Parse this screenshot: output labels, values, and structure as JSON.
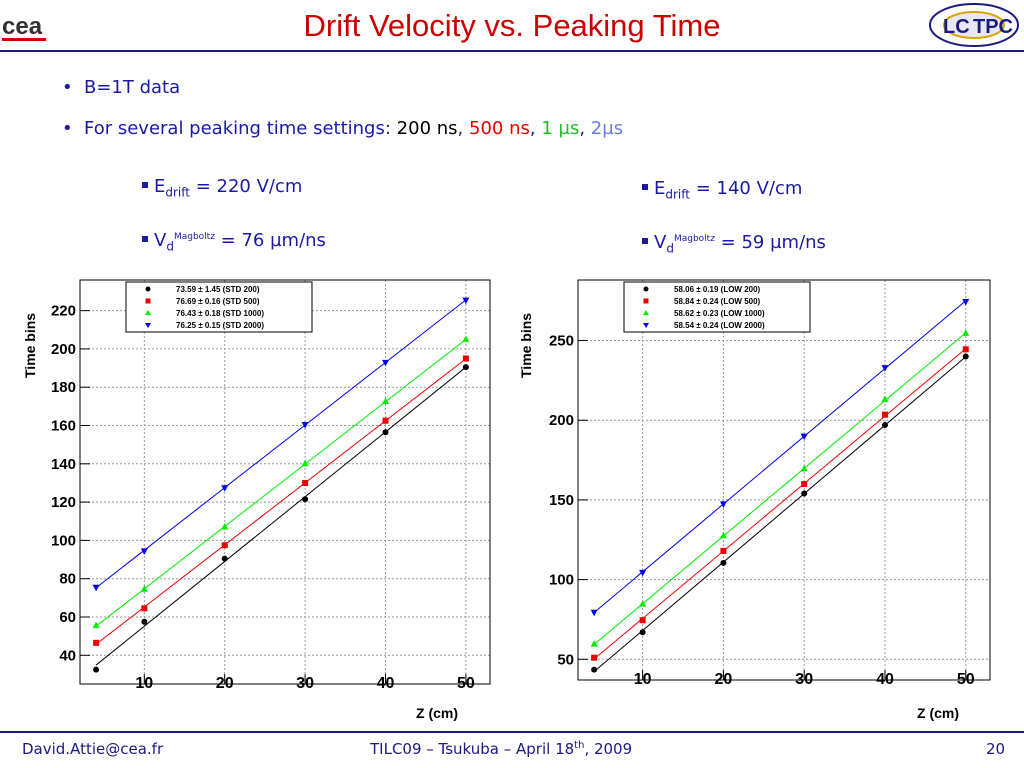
{
  "title": "Drift Velocity vs. Peaking Time",
  "bullets": {
    "b1": "B=1T data",
    "b2_prefix": "For several peaking time settings:",
    "t1": "200 ns",
    "t2": "500 ns",
    "t3": "1 µs",
    "t4": "2µs"
  },
  "left_info": {
    "e_main": "E",
    "e_sub": "drift",
    "e_val": "= 220 V/cm",
    "v_main": "V",
    "v_sub": "d",
    "v_sup": "Magboltz",
    "v_val": "= 76 µm/ns"
  },
  "right_info": {
    "e_main": "E",
    "e_sub": "drift",
    "e_val": "= 140 V/cm",
    "v_main": "V",
    "v_sub": "d",
    "v_sup": "Magboltz",
    "v_val": "= 59 µm/ns"
  },
  "footer": {
    "email": "David.Attie@cea.fr",
    "conf_a": "TILC09 – Tsukuba – April 18",
    "conf_sup": "th",
    "conf_b": ", 2009",
    "page": "20"
  },
  "colors": {
    "title": "#cc0000",
    "blue_text": "#1a1aa6",
    "bar": "#1a1a80"
  },
  "chart_data": [
    {
      "type": "scatter",
      "title": "",
      "xlabel": "Z (cm)",
      "ylabel": "Time bins",
      "xlim": [
        2,
        53
      ],
      "ylim": [
        25,
        236
      ],
      "xticks": [
        10,
        20,
        30,
        40,
        50
      ],
      "yticks": [
        40,
        60,
        80,
        100,
        120,
        140,
        160,
        180,
        200,
        220
      ],
      "grid": true,
      "legend_position": "top-left",
      "x": [
        4,
        10,
        20,
        30,
        40,
        50
      ],
      "series": [
        {
          "name": "73.59 ± 1.45 (STD 200)",
          "color": "#000000",
          "marker": "circle",
          "values": [
            32.5,
            57.5,
            90.5,
            121.5,
            156.5,
            190.5
          ]
        },
        {
          "name": "76.69 ± 0.16 (STD 500)",
          "color": "#ee0000",
          "marker": "square",
          "values": [
            46.5,
            64.5,
            97.5,
            130,
            162.5,
            195
          ]
        },
        {
          "name": "76.43 ± 0.18 (STD 1000)",
          "color": "#00ee00",
          "marker": "triangle-up",
          "values": [
            55.5,
            74.5,
            107,
            140,
            172.5,
            205
          ]
        },
        {
          "name": "76.25 ± 0.15 (STD 2000)",
          "color": "#0000ee",
          "marker": "triangle-down",
          "values": [
            75.5,
            94.5,
            127.5,
            160.5,
            193,
            225.5
          ]
        }
      ]
    },
    {
      "type": "scatter",
      "title": "",
      "xlabel": "Z (cm)",
      "ylabel": "Time bins",
      "xlim": [
        2,
        53
      ],
      "ylim": [
        37,
        288
      ],
      "xticks": [
        10,
        20,
        30,
        40,
        50
      ],
      "yticks": [
        50,
        100,
        150,
        200,
        250
      ],
      "grid": true,
      "legend_position": "top-left",
      "x": [
        4,
        10,
        20,
        30,
        40,
        50
      ],
      "series": [
        {
          "name": "58.06 ± 0.19 (LOW 200)",
          "color": "#000000",
          "marker": "circle",
          "values": [
            43.5,
            67,
            110.5,
            154,
            197,
            240
          ]
        },
        {
          "name": "58.84 ± 0.24 (LOW 500)",
          "color": "#ee0000",
          "marker": "square",
          "values": [
            51,
            74.5,
            118,
            160,
            203.5,
            244.5
          ]
        },
        {
          "name": "58.62 ± 0.23 (LOW 1000)",
          "color": "#00ee00",
          "marker": "triangle-up",
          "values": [
            59.5,
            84.5,
            127.5,
            169.5,
            213,
            254.5
          ]
        },
        {
          "name": "58.54 ± 0.24 (LOW 2000)",
          "color": "#0000ee",
          "marker": "triangle-down",
          "values": [
            79.5,
            104.5,
            147.5,
            190,
            233,
            274.5
          ]
        }
      ]
    }
  ]
}
